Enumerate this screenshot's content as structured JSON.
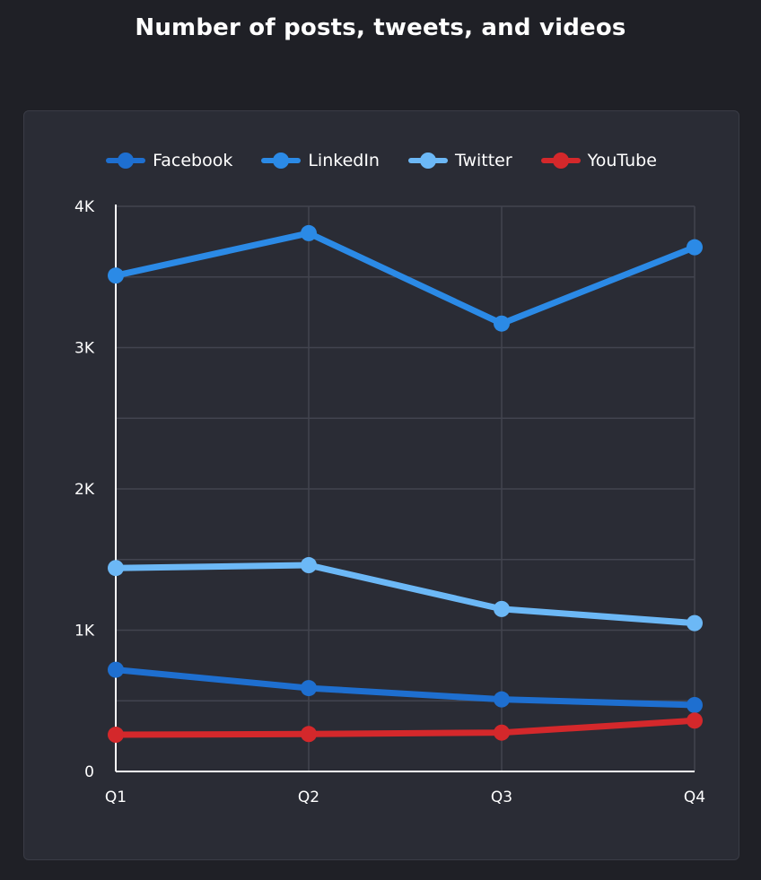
{
  "title": "Number of posts, tweets, and videos",
  "chart_data": {
    "type": "line",
    "categories": [
      "Q1",
      "Q2",
      "Q3",
      "Q4"
    ],
    "ylim": [
      0,
      4000
    ],
    "yticks": [
      {
        "value": 0,
        "label": "0"
      },
      {
        "value": 1000,
        "label": "1K"
      },
      {
        "value": 2000,
        "label": "2K"
      },
      {
        "value": 3000,
        "label": "3K"
      },
      {
        "value": 4000,
        "label": "4K"
      }
    ],
    "grid": true,
    "legend_position": "top",
    "series": [
      {
        "name": "Facebook",
        "color": "#1e6fd0",
        "values": [
          720,
          590,
          510,
          470
        ]
      },
      {
        "name": "LinkedIn",
        "color": "#2b8ae6",
        "values": [
          3510,
          3810,
          3170,
          3710
        ]
      },
      {
        "name": "Twitter",
        "color": "#6cb8f6",
        "values": [
          1440,
          1460,
          1150,
          1050
        ]
      },
      {
        "name": "YouTube",
        "color": "#d4282b",
        "values": [
          260,
          265,
          275,
          360
        ]
      }
    ]
  }
}
